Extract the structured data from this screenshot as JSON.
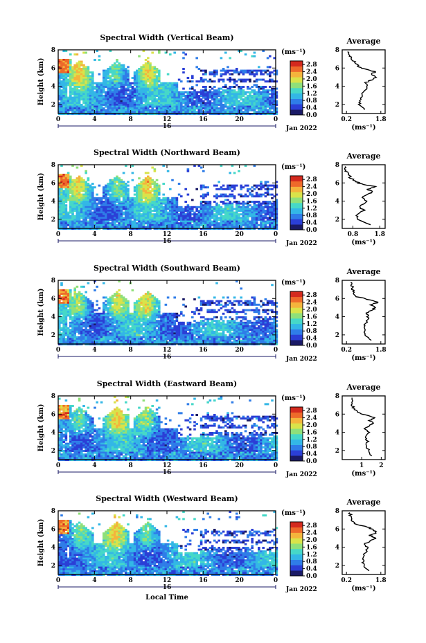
{
  "chart_data": [
    {
      "type": "heatmap",
      "title": "Spectral Width (Vertical Beam)",
      "xlabel": "",
      "ylabel": "Height (km)",
      "xlim": [
        0,
        24
      ],
      "ylim": [
        1,
        8
      ],
      "x_ticks": [
        "0",
        "4",
        "8",
        "12",
        "16",
        "20",
        "0"
      ],
      "y_ticks": [
        "2",
        "4",
        "6",
        "8"
      ],
      "date_tick": "16",
      "date_label": "Jan 2022",
      "colorbar": {
        "unit": "(ms⁻¹)",
        "ticks": [
          "0.0",
          "0.4",
          "0.8",
          "1.2",
          "1.6",
          "2.0",
          "2.4",
          "2.8"
        ],
        "range": [
          0,
          3.0
        ]
      },
      "profile": {
        "title": "Average",
        "xlabel": "(ms⁻¹)",
        "x_ticks": [
          "0.2",
          "1.8"
        ],
        "xlim": [
          0,
          2
        ],
        "y_ticks": [
          "2",
          "4",
          "6",
          "8"
        ],
        "heights": [
          1.4,
          2.0,
          2.4,
          3.0,
          3.4,
          4.0,
          4.4,
          4.8,
          5.0,
          5.3,
          5.6,
          5.9,
          6.2,
          6.6,
          7.0,
          7.4,
          7.8
        ],
        "values": [
          1.05,
          0.8,
          0.8,
          0.9,
          1.0,
          1.2,
          1.1,
          1.45,
          1.6,
          1.35,
          1.55,
          1.0,
          0.75,
          0.6,
          0.45,
          0.35,
          0.25
        ]
      }
    },
    {
      "type": "heatmap",
      "title": "Spectral Width (Northward Beam)",
      "xlabel": "",
      "ylabel": "Height (km)",
      "xlim": [
        0,
        24
      ],
      "ylim": [
        1,
        8
      ],
      "x_ticks": [
        "0",
        "4",
        "8",
        "12",
        "16",
        "20",
        "0"
      ],
      "y_ticks": [
        "2",
        "4",
        "6",
        "8"
      ],
      "date_tick": "16",
      "date_label": "Jan 2022",
      "colorbar": {
        "unit": "(ms⁻¹)",
        "ticks": [
          "0.0",
          "0.4",
          "0.8",
          "1.2",
          "1.6",
          "2.0",
          "2.4",
          "2.8"
        ],
        "range": [
          0,
          3.0
        ]
      },
      "profile": {
        "title": "Average",
        "xlabel": "(ms⁻¹)",
        "x_ticks": [
          "0.8",
          "1.8"
        ],
        "xlim": [
          0.4,
          2
        ],
        "y_ticks": [
          "2",
          "4",
          "6",
          "8"
        ],
        "heights": [
          1.4,
          2.0,
          2.4,
          3.0,
          3.4,
          4.0,
          4.4,
          4.8,
          5.0,
          5.3,
          5.6,
          5.9,
          6.2,
          6.6,
          7.0,
          7.4,
          7.8
        ],
        "values": [
          1.4,
          1.0,
          0.95,
          1.2,
          1.05,
          1.3,
          1.15,
          1.4,
          1.55,
          1.35,
          1.6,
          1.1,
          0.85,
          0.7,
          0.6,
          0.55,
          0.5
        ]
      }
    },
    {
      "type": "heatmap",
      "title": "Spectral Width (Southward Beam)",
      "xlabel": "",
      "ylabel": "Height (km)",
      "xlim": [
        0,
        24
      ],
      "ylim": [
        1,
        8
      ],
      "x_ticks": [
        "0",
        "4",
        "8",
        "12",
        "16",
        "20",
        "0"
      ],
      "y_ticks": [
        "2",
        "4",
        "6",
        "8"
      ],
      "date_tick": "16",
      "date_label": "Jan 2022",
      "colorbar": {
        "unit": "(ms⁻¹)",
        "ticks": [
          "0.0",
          "0.4",
          "0.8",
          "1.2",
          "1.6",
          "2.0",
          "2.4",
          "2.8"
        ],
        "range": [
          0,
          3.0
        ]
      },
      "profile": {
        "title": "Average",
        "xlabel": "(ms⁻¹)",
        "x_ticks": [
          "0.2",
          "1.8"
        ],
        "xlim": [
          0,
          2
        ],
        "y_ticks": [
          "2",
          "4",
          "6",
          "8"
        ],
        "heights": [
          1.4,
          2.0,
          2.4,
          3.0,
          3.4,
          4.0,
          4.4,
          4.8,
          5.0,
          5.3,
          5.6,
          5.9,
          6.2,
          6.6,
          7.0,
          7.4,
          7.8
        ],
        "values": [
          1.3,
          1.1,
          1.0,
          1.05,
          1.15,
          1.2,
          1.1,
          1.45,
          1.55,
          1.3,
          1.7,
          1.2,
          0.7,
          0.55,
          0.5,
          0.45,
          0.4
        ]
      }
    },
    {
      "type": "heatmap",
      "title": "Spectral Width (Eastward Beam)",
      "xlabel": "",
      "ylabel": "Height (km)",
      "xlim": [
        0,
        24
      ],
      "ylim": [
        1,
        8
      ],
      "x_ticks": [
        "0",
        "4",
        "8",
        "12",
        "16",
        "20",
        "0"
      ],
      "y_ticks": [
        "2",
        "4",
        "6",
        "8"
      ],
      "date_tick": "16",
      "date_label": "Jan 2022",
      "colorbar": {
        "unit": "(ms⁻¹)",
        "ticks": [
          "0.0",
          "0.4",
          "0.8",
          "1.2",
          "1.6",
          "2.0",
          "2.4",
          "2.8"
        ],
        "range": [
          0,
          3.0
        ]
      },
      "profile": {
        "title": "Average",
        "xlabel": "(ms⁻¹)",
        "x_ticks": [
          "1",
          "2"
        ],
        "xlim": [
          0,
          2.2
        ],
        "y_ticks": [
          "2",
          "4",
          "6",
          "8"
        ],
        "heights": [
          1.4,
          2.0,
          2.4,
          3.0,
          3.4,
          4.0,
          4.4,
          4.8,
          5.0,
          5.3,
          5.6,
          5.9,
          6.2,
          6.6,
          7.0,
          7.4,
          7.8
        ],
        "values": [
          1.5,
          1.4,
          1.2,
          1.3,
          1.2,
          1.35,
          1.15,
          1.45,
          1.6,
          1.4,
          1.7,
          1.2,
          0.8,
          0.6,
          0.5,
          0.5,
          0.5
        ]
      }
    },
    {
      "type": "heatmap",
      "title": "Spectral Width (Westward Beam)",
      "xlabel": "Local Time",
      "ylabel": "Height (km)",
      "xlim": [
        0,
        24
      ],
      "ylim": [
        1,
        8
      ],
      "x_ticks": [
        "0",
        "4",
        "8",
        "12",
        "16",
        "20",
        "0"
      ],
      "y_ticks": [
        "2",
        "4",
        "6",
        "8"
      ],
      "date_tick": "16",
      "date_label": "Jan 2022",
      "colorbar": {
        "unit": "(ms⁻¹)",
        "ticks": [
          "0.0",
          "0.4",
          "0.8",
          "1.2",
          "1.6",
          "2.0",
          "2.4",
          "2.8"
        ],
        "range": [
          0,
          3.0
        ]
      },
      "profile": {
        "title": "Average",
        "xlabel": "(ms⁻¹)",
        "x_ticks": [
          "0.2",
          "1.8"
        ],
        "xlim": [
          0,
          2
        ],
        "y_ticks": [
          "2",
          "4",
          "6",
          "8"
        ],
        "heights": [
          1.4,
          2.0,
          2.4,
          3.0,
          3.4,
          4.0,
          4.4,
          4.8,
          5.0,
          5.3,
          5.6,
          5.9,
          6.2,
          6.6,
          7.0,
          7.4,
          7.8
        ],
        "values": [
          1.2,
          1.0,
          0.95,
          1.0,
          1.1,
          1.15,
          1.05,
          1.4,
          1.55,
          1.3,
          1.6,
          1.45,
          1.2,
          0.55,
          0.45,
          0.4,
          0.35
        ]
      }
    }
  ],
  "colormap": [
    "#1a1a66",
    "#2b3fd6",
    "#2f7de8",
    "#33b7e6",
    "#46d8c8",
    "#8fe07a",
    "#d9e34a",
    "#f4b43c",
    "#ee6a2a",
    "#d42a1e"
  ]
}
